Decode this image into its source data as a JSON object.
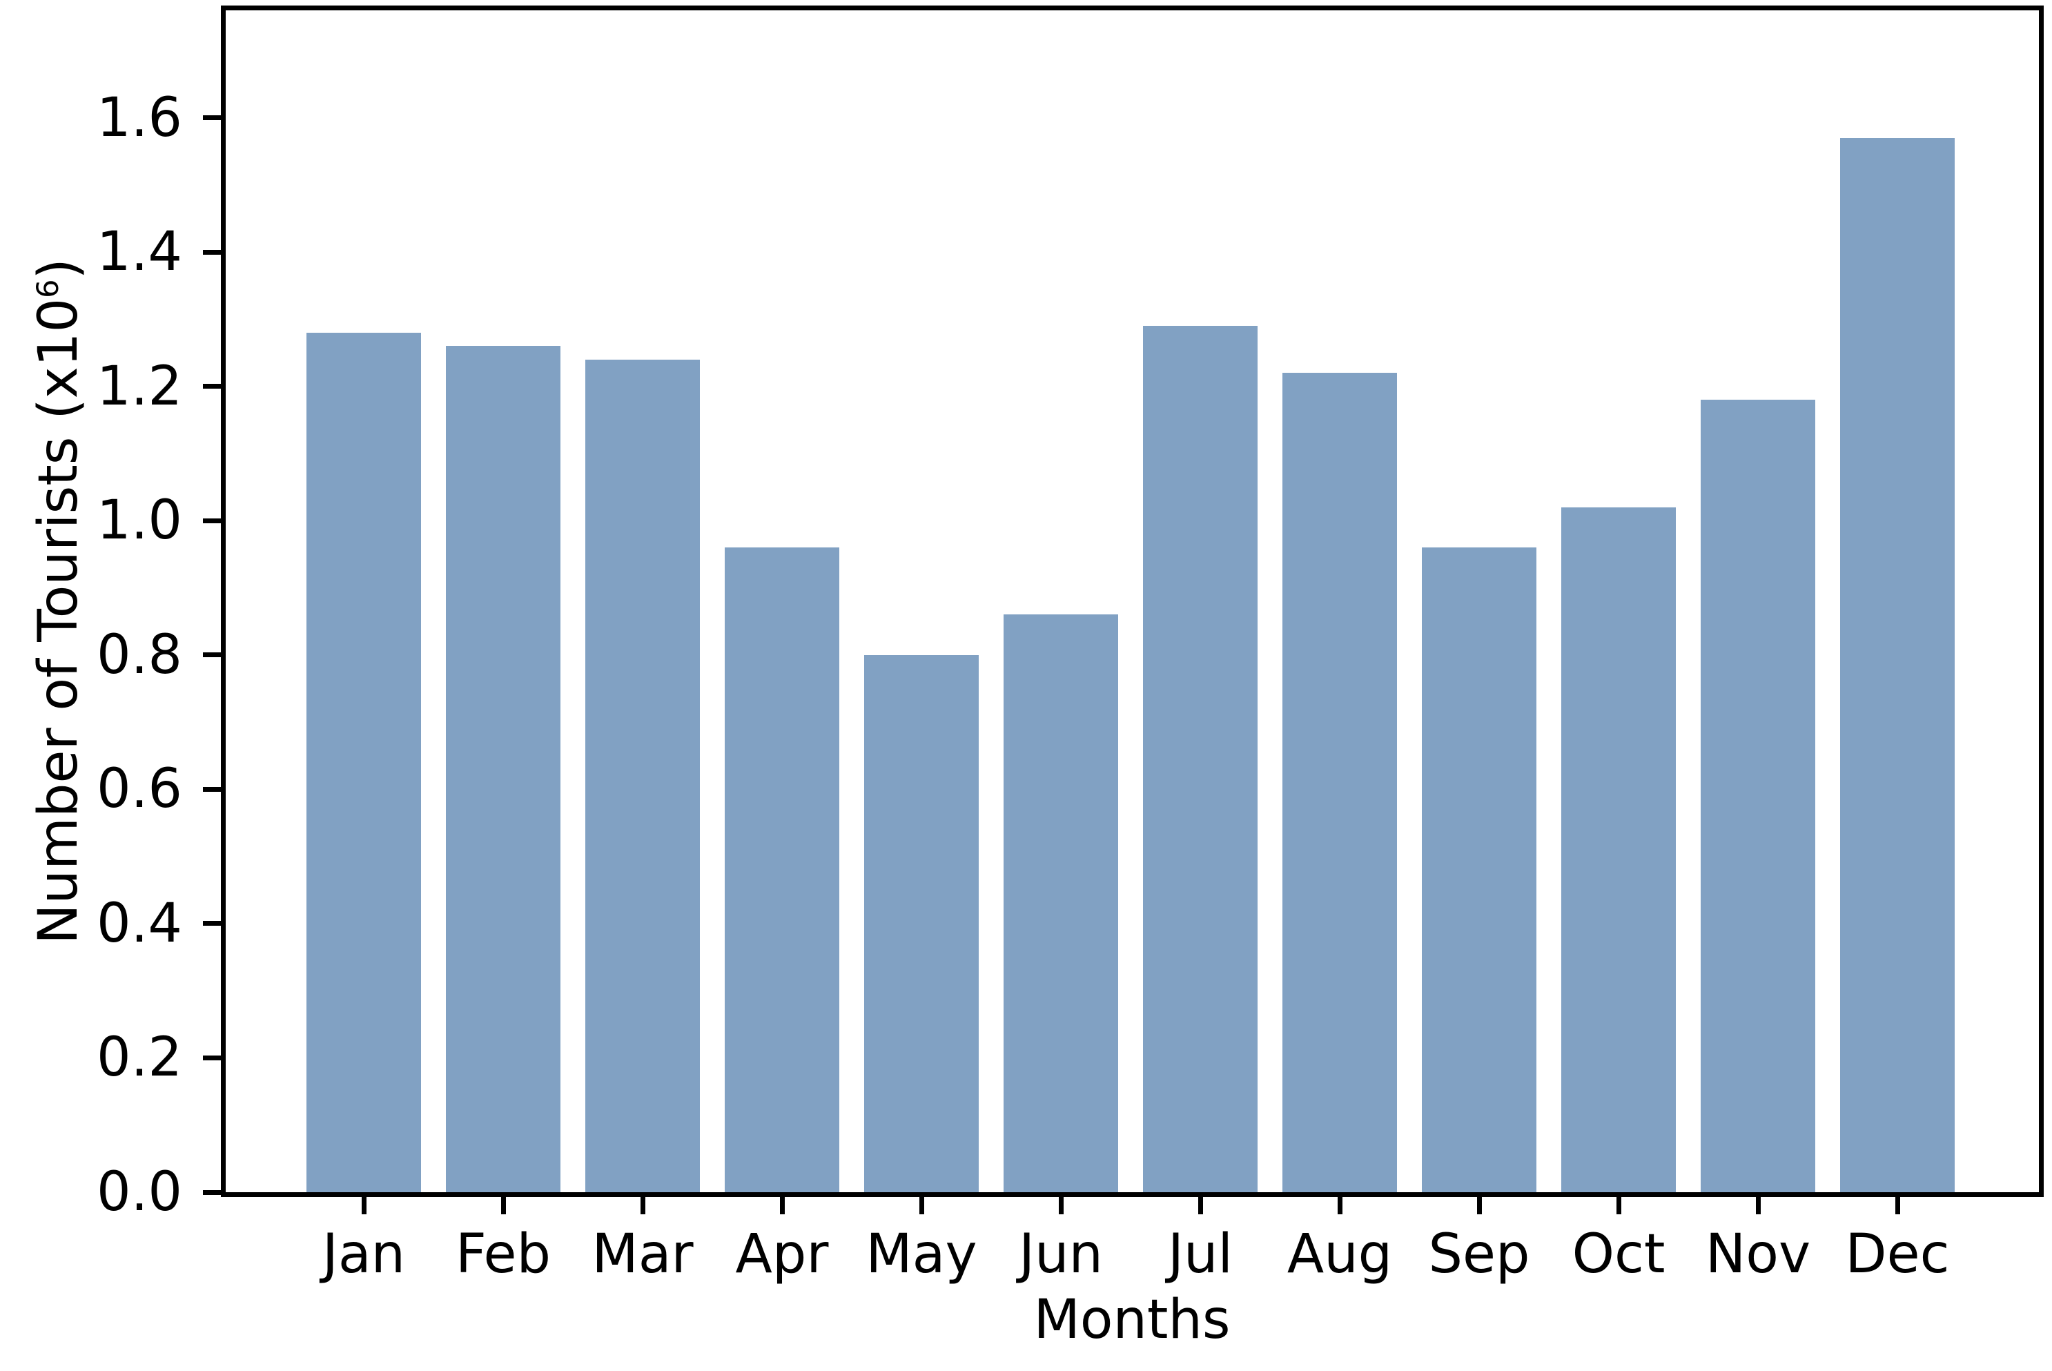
{
  "chart_data": {
    "type": "bar",
    "title": "",
    "categories": [
      "Jan",
      "Feb",
      "Mar",
      "Apr",
      "May",
      "Jun",
      "Jul",
      "Aug",
      "Sep",
      "Oct",
      "Nov",
      "Dec"
    ],
    "values": [
      1.28,
      1.26,
      1.24,
      0.96,
      0.8,
      0.86,
      1.29,
      1.22,
      0.96,
      1.02,
      1.18,
      1.57
    ],
    "xlabel": "Months",
    "ylabel": "Number of Tourists (x10^6)",
    "ylabel_parts": {
      "base": "Number of Tourists (x10",
      "sup": "6",
      "close": ")"
    },
    "yticks": [
      0.0,
      0.2,
      0.4,
      0.6,
      0.8,
      1.0,
      1.2,
      1.4,
      1.6
    ],
    "ytick_labels": [
      "0.0",
      "0.2",
      "0.4",
      "0.6",
      "0.8",
      "1.0",
      "1.2",
      "1.4",
      "1.6"
    ],
    "ylim": [
      0,
      1.76
    ],
    "bar_color": "#81a1c3",
    "axis_color": "#000000",
    "background_color": "#ffffff",
    "grid": false,
    "legend": null
  }
}
